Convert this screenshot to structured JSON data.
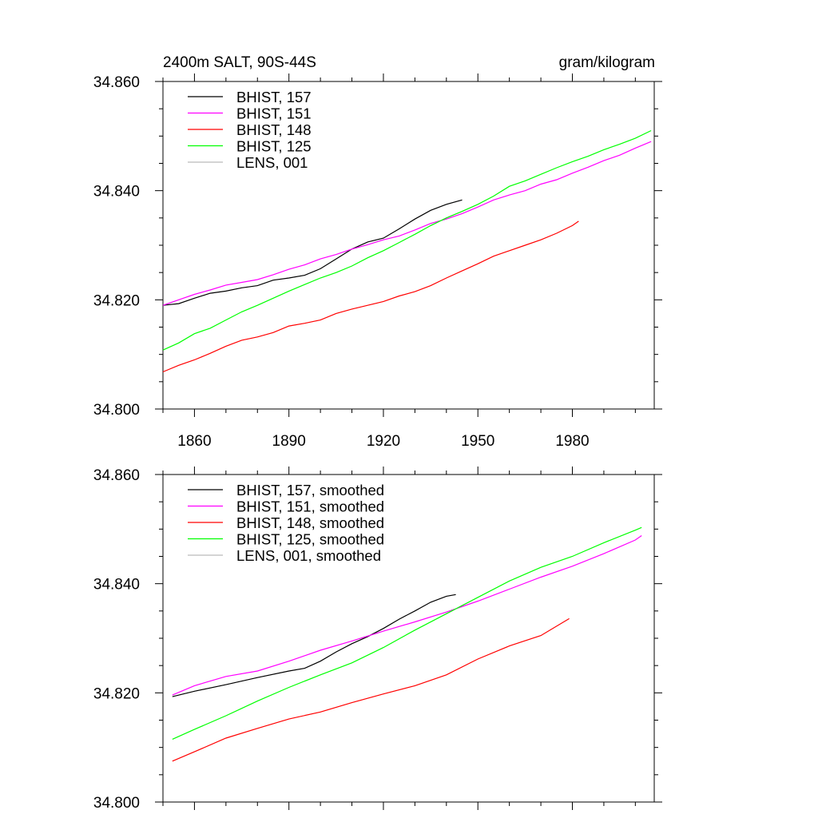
{
  "header": {
    "title": "2400m SALT, 90S-44S",
    "units": "gram/kilogram"
  },
  "chart_data": [
    {
      "type": "line",
      "title": "2400m SALT, 90S-44S",
      "ylabel": "",
      "xlabel": "",
      "xlim": [
        1850,
        2006
      ],
      "ylim": [
        34.8,
        34.86
      ],
      "xticks": [
        1860,
        1890,
        1920,
        1950,
        1980
      ],
      "xtick_labels": [
        "1860",
        "1890",
        "1920",
        "1950",
        "1980"
      ],
      "yticks": [
        34.8,
        34.82,
        34.84,
        34.86
      ],
      "ytick_labels": [
        "34.800",
        "34.820",
        "34.840",
        "34.860"
      ],
      "legend_position": "top-left",
      "series": [
        {
          "name": "BHIST, 157",
          "color": "#000000",
          "x": [
            1850,
            1855,
            1860,
            1865,
            1870,
            1875,
            1880,
            1885,
            1890,
            1895,
            1900,
            1905,
            1910,
            1915,
            1920,
            1925,
            1930,
            1935,
            1940,
            1945
          ],
          "y": [
            34.819,
            34.8193,
            34.8203,
            34.8212,
            34.8216,
            34.8222,
            34.8226,
            34.8236,
            34.824,
            34.8245,
            34.8257,
            34.8275,
            34.8293,
            34.8306,
            34.8313,
            34.833,
            34.8348,
            34.8364,
            34.8375,
            34.8383
          ]
        },
        {
          "name": "BHIST, 151",
          "color": "#ff00ff",
          "x": [
            1850,
            1855,
            1860,
            1865,
            1870,
            1875,
            1880,
            1885,
            1890,
            1895,
            1900,
            1905,
            1910,
            1915,
            1920,
            1925,
            1930,
            1935,
            1940,
            1945,
            1950,
            1955,
            1960,
            1965,
            1970,
            1975,
            1980,
            1985,
            1990,
            1995,
            2000,
            2005
          ],
          "y": [
            34.819,
            34.82,
            34.821,
            34.8218,
            34.8227,
            34.8232,
            34.8237,
            34.8246,
            34.8256,
            34.8264,
            34.8275,
            34.8283,
            34.8293,
            34.8301,
            34.831,
            34.8317,
            34.8328,
            34.834,
            34.8348,
            34.8358,
            34.837,
            34.8383,
            34.8392,
            34.84,
            34.8412,
            34.842,
            34.8432,
            34.8443,
            34.8455,
            34.8465,
            34.8478,
            34.849
          ]
        },
        {
          "name": "BHIST, 148",
          "color": "#ff0000",
          "x": [
            1850,
            1855,
            1860,
            1865,
            1870,
            1875,
            1880,
            1885,
            1890,
            1895,
            1900,
            1905,
            1910,
            1915,
            1920,
            1925,
            1930,
            1935,
            1940,
            1945,
            1950,
            1955,
            1960,
            1965,
            1970,
            1975,
            1980,
            1982
          ],
          "y": [
            34.8068,
            34.808,
            34.809,
            34.8102,
            34.8115,
            34.8126,
            34.8132,
            34.814,
            34.8152,
            34.8157,
            34.8163,
            34.8175,
            34.8183,
            34.819,
            34.8197,
            34.8207,
            34.8215,
            34.8226,
            34.824,
            34.8253,
            34.8266,
            34.828,
            34.829,
            34.83,
            34.831,
            34.8322,
            34.8336,
            34.8344
          ]
        },
        {
          "name": "BHIST, 125",
          "color": "#00ff00",
          "x": [
            1850,
            1855,
            1860,
            1865,
            1870,
            1875,
            1880,
            1885,
            1890,
            1895,
            1900,
            1905,
            1910,
            1915,
            1920,
            1925,
            1930,
            1935,
            1940,
            1945,
            1950,
            1955,
            1960,
            1965,
            1970,
            1975,
            1980,
            1985,
            1990,
            1995,
            2000,
            2005
          ],
          "y": [
            34.8108,
            34.8121,
            34.8138,
            34.8148,
            34.8163,
            34.8178,
            34.819,
            34.8203,
            34.8216,
            34.8228,
            34.824,
            34.825,
            34.8262,
            34.8277,
            34.829,
            34.8305,
            34.832,
            34.8336,
            34.835,
            34.8362,
            34.8375,
            34.839,
            34.8408,
            34.8418,
            34.843,
            34.8442,
            34.8453,
            34.8463,
            34.8475,
            34.8485,
            34.8496,
            34.851
          ]
        },
        {
          "name": "LENS, 001",
          "color": "#bbbbbb",
          "x": [],
          "y": []
        }
      ]
    },
    {
      "type": "line",
      "xlabel": "",
      "ylabel": "",
      "xlim": [
        1850,
        2006
      ],
      "ylim": [
        34.8,
        34.86
      ],
      "xticks": [
        1860,
        1890,
        1920,
        1950,
        1980
      ],
      "yticks": [
        34.8,
        34.82,
        34.84,
        34.86
      ],
      "ytick_labels": [
        "34.800",
        "34.820",
        "34.840",
        "34.860"
      ],
      "legend_position": "top-left",
      "series": [
        {
          "name": "BHIST, 157, smoothed",
          "color": "#000000",
          "x": [
            1853,
            1860,
            1870,
            1880,
            1890,
            1895,
            1900,
            1905,
            1910,
            1915,
            1920,
            1925,
            1930,
            1935,
            1940,
            1943
          ],
          "y": [
            34.8193,
            34.8203,
            34.8215,
            34.8228,
            34.824,
            34.8245,
            34.8258,
            34.8275,
            34.829,
            34.8303,
            34.8318,
            34.8335,
            34.835,
            34.8366,
            34.8377,
            34.838
          ]
        },
        {
          "name": "BHIST, 151, smoothed",
          "color": "#ff00ff",
          "x": [
            1853,
            1860,
            1870,
            1880,
            1890,
            1900,
            1910,
            1920,
            1930,
            1940,
            1950,
            1960,
            1970,
            1980,
            1990,
            2000,
            2002
          ],
          "y": [
            34.8196,
            34.8213,
            34.823,
            34.824,
            34.8258,
            34.8278,
            34.8295,
            34.8313,
            34.833,
            34.8348,
            34.8368,
            34.839,
            34.8412,
            34.8432,
            34.8455,
            34.848,
            34.8488
          ]
        },
        {
          "name": "BHIST, 148, smoothed",
          "color": "#ff0000",
          "x": [
            1853,
            1860,
            1870,
            1880,
            1890,
            1900,
            1910,
            1920,
            1930,
            1940,
            1950,
            1960,
            1970,
            1979
          ],
          "y": [
            34.8075,
            34.8092,
            34.8117,
            34.8135,
            34.8152,
            34.8165,
            34.8182,
            34.8198,
            34.8213,
            34.8233,
            34.8262,
            34.8286,
            34.8305,
            34.8336
          ]
        },
        {
          "name": "BHIST, 125, smoothed",
          "color": "#00ff00",
          "x": [
            1853,
            1860,
            1870,
            1880,
            1890,
            1900,
            1910,
            1920,
            1930,
            1940,
            1950,
            1960,
            1970,
            1980,
            1990,
            2000,
            2002
          ],
          "y": [
            34.8115,
            34.8133,
            34.8158,
            34.8185,
            34.821,
            34.8233,
            34.8255,
            34.8283,
            34.8315,
            34.8345,
            34.8375,
            34.8405,
            34.843,
            34.845,
            34.8475,
            34.8498,
            34.8503
          ]
        },
        {
          "name": "LENS, 001, smoothed",
          "color": "#bbbbbb",
          "x": [],
          "y": []
        }
      ]
    }
  ]
}
